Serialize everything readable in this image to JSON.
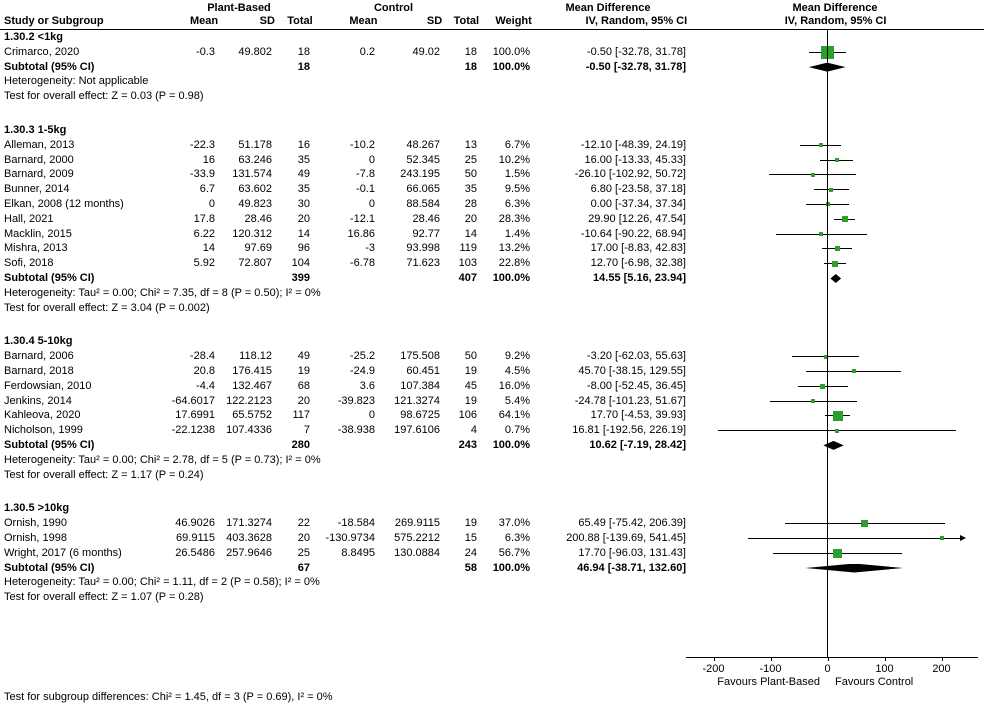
{
  "header": {
    "study_col": "Study or Subgroup",
    "plant_group": "Plant-Based",
    "control_group": "Control",
    "mean": "Mean",
    "sd": "SD",
    "total": "Total",
    "weight": "Weight",
    "md_group": "Mean Difference",
    "ci_method": "IV, Random, 95% CI",
    "plot_md": "Mean Difference",
    "plot_ci_method": "IV, Random, 95% CI"
  },
  "plot": {
    "marker_color": "#2ca02c",
    "axis": {
      "ticks": [
        -200,
        -100,
        0,
        100,
        200
      ],
      "favours_left": "Favours Plant-Based",
      "favours_right": "Favours Control"
    }
  },
  "footer": {
    "subgroup_test": "Test for subgroup differences: Chi² = 1.45, df = 3 (P = 0.69), I² = 0%"
  },
  "chart_data": {
    "type": "forest",
    "effect_measure": "Mean Difference",
    "model": "IV, Random, 95% CI",
    "xlim": [
      -200,
      200
    ],
    "subgroups": [
      {
        "label": "1.30.2 <1kg",
        "studies": [
          {
            "name": "Crimarco, 2020",
            "p_mean": "-0.3",
            "p_sd": "49.802",
            "p_total": "18",
            "c_mean": "0.2",
            "c_sd": "49.02",
            "c_total": "18",
            "weight": "100.0%",
            "ci_text": "-0.50 [-32.78, 31.78]",
            "md": -0.5,
            "lo": -32.78,
            "hi": 31.78,
            "w": 100.0
          }
        ],
        "subtotal": {
          "label": "Subtotal (95% CI)",
          "p_total": "18",
          "c_total": "18",
          "weight": "100.0%",
          "ci_text": "-0.50 [-32.78, 31.78]",
          "md": -0.5,
          "lo": -32.78,
          "hi": 31.78
        },
        "heterogeneity": "Heterogeneity: Not applicable",
        "overall_test": "Test for overall effect: Z = 0.03 (P = 0.98)"
      },
      {
        "label": "1.30.3 1-5kg",
        "studies": [
          {
            "name": "Alleman, 2013",
            "p_mean": "-22.3",
            "p_sd": "51.178",
            "p_total": "16",
            "c_mean": "-10.2",
            "c_sd": "48.267",
            "c_total": "13",
            "weight": "6.7%",
            "ci_text": "-12.10 [-48.39, 24.19]",
            "md": -12.1,
            "lo": -48.39,
            "hi": 24.19,
            "w": 6.7
          },
          {
            "name": "Barnard, 2000",
            "p_mean": "16",
            "p_sd": "63.246",
            "p_total": "35",
            "c_mean": "0",
            "c_sd": "52.345",
            "c_total": "25",
            "weight": "10.2%",
            "ci_text": "16.00 [-13.33, 45.33]",
            "md": 16.0,
            "lo": -13.33,
            "hi": 45.33,
            "w": 10.2
          },
          {
            "name": "Barnard, 2009",
            "p_mean": "-33.9",
            "p_sd": "131.574",
            "p_total": "49",
            "c_mean": "-7.8",
            "c_sd": "243.195",
            "c_total": "50",
            "weight": "1.5%",
            "ci_text": "-26.10 [-102.92, 50.72]",
            "md": -26.1,
            "lo": -102.92,
            "hi": 50.72,
            "w": 1.5
          },
          {
            "name": "Bunner, 2014",
            "p_mean": "6.7",
            "p_sd": "63.602",
            "p_total": "35",
            "c_mean": "-0.1",
            "c_sd": "66.065",
            "c_total": "35",
            "weight": "9.5%",
            "ci_text": "6.80 [-23.58, 37.18]",
            "md": 6.8,
            "lo": -23.58,
            "hi": 37.18,
            "w": 9.5
          },
          {
            "name": "Elkan, 2008 (12 months)",
            "p_mean": "0",
            "p_sd": "49.823",
            "p_total": "30",
            "c_mean": "0",
            "c_sd": "88.584",
            "c_total": "28",
            "weight": "6.3%",
            "ci_text": "0.00 [-37.34, 37.34]",
            "md": 0.0,
            "lo": -37.34,
            "hi": 37.34,
            "w": 6.3
          },
          {
            "name": "Hall, 2021",
            "p_mean": "17.8",
            "p_sd": "28.46",
            "p_total": "20",
            "c_mean": "-12.1",
            "c_sd": "28.46",
            "c_total": "20",
            "weight": "28.3%",
            "ci_text": "29.90 [12.26, 47.54]",
            "md": 29.9,
            "lo": 12.26,
            "hi": 47.54,
            "w": 28.3
          },
          {
            "name": "Macklin, 2015",
            "p_mean": "6.22",
            "p_sd": "120.312",
            "p_total": "14",
            "c_mean": "16.86",
            "c_sd": "92.77",
            "c_total": "14",
            "weight": "1.4%",
            "ci_text": "-10.64 [-90.22, 68.94]",
            "md": -10.64,
            "lo": -90.22,
            "hi": 68.94,
            "w": 1.4
          },
          {
            "name": "Mishra, 2013",
            "p_mean": "14",
            "p_sd": "97.69",
            "p_total": "96",
            "c_mean": "-3",
            "c_sd": "93.998",
            "c_total": "119",
            "weight": "13.2%",
            "ci_text": "17.00 [-8.83, 42.83]",
            "md": 17.0,
            "lo": -8.83,
            "hi": 42.83,
            "w": 13.2
          },
          {
            "name": "Sofi, 2018",
            "p_mean": "5.92",
            "p_sd": "72.807",
            "p_total": "104",
            "c_mean": "-6.78",
            "c_sd": "71.623",
            "c_total": "103",
            "weight": "22.8%",
            "ci_text": "12.70 [-6.98, 32.38]",
            "md": 12.7,
            "lo": -6.98,
            "hi": 32.38,
            "w": 22.8
          }
        ],
        "subtotal": {
          "label": "Subtotal (95% CI)",
          "p_total": "399",
          "c_total": "407",
          "weight": "100.0%",
          "ci_text": "14.55 [5.16, 23.94]",
          "md": 14.55,
          "lo": 5.16,
          "hi": 23.94
        },
        "heterogeneity": "Heterogeneity: Tau² = 0.00; Chi² = 7.35, df = 8 (P = 0.50); I² = 0%",
        "overall_test": "Test for overall effect: Z = 3.04 (P = 0.002)"
      },
      {
        "label": "1.30.4 5-10kg",
        "studies": [
          {
            "name": "Barnard, 2006",
            "p_mean": "-28.4",
            "p_sd": "118.12",
            "p_total": "49",
            "c_mean": "-25.2",
            "c_sd": "175.508",
            "c_total": "50",
            "weight": "9.2%",
            "ci_text": "-3.20 [-62.03, 55.63]",
            "md": -3.2,
            "lo": -62.03,
            "hi": 55.63,
            "w": 9.2
          },
          {
            "name": "Barnard, 2018",
            "p_mean": "20.8",
            "p_sd": "176.415",
            "p_total": "19",
            "c_mean": "-24.9",
            "c_sd": "60.451",
            "c_total": "19",
            "weight": "4.5%",
            "ci_text": "45.70 [-38.15, 129.55]",
            "md": 45.7,
            "lo": -38.15,
            "hi": 129.55,
            "w": 4.5
          },
          {
            "name": "Ferdowsian, 2010",
            "p_mean": "-4.4",
            "p_sd": "132.467",
            "p_total": "68",
            "c_mean": "3.6",
            "c_sd": "107.384",
            "c_total": "45",
            "weight": "16.0%",
            "ci_text": "-8.00 [-52.45, 36.45]",
            "md": -8.0,
            "lo": -52.45,
            "hi": 36.45,
            "w": 16.0
          },
          {
            "name": "Jenkins, 2014",
            "p_mean": "-64.6017",
            "p_sd": "122.2123",
            "p_total": "20",
            "c_mean": "-39.823",
            "c_sd": "121.3274",
            "c_total": "19",
            "weight": "5.4%",
            "ci_text": "-24.78 [-101.23, 51.67]",
            "md": -24.78,
            "lo": -101.23,
            "hi": 51.67,
            "w": 5.4
          },
          {
            "name": "Kahleova, 2020",
            "p_mean": "17.6991",
            "p_sd": "65.5752",
            "p_total": "117",
            "c_mean": "0",
            "c_sd": "98.6725",
            "c_total": "106",
            "weight": "64.1%",
            "ci_text": "17.70 [-4.53, 39.93]",
            "md": 17.7,
            "lo": -4.53,
            "hi": 39.93,
            "w": 64.1
          },
          {
            "name": "Nicholson, 1999",
            "p_mean": "-22.1238",
            "p_sd": "107.4336",
            "p_total": "7",
            "c_mean": "-38.938",
            "c_sd": "197.6106",
            "c_total": "4",
            "weight": "0.7%",
            "ci_text": "16.81 [-192.56, 226.19]",
            "md": 16.81,
            "lo": -192.56,
            "hi": 226.19,
            "w": 0.7
          }
        ],
        "subtotal": {
          "label": "Subtotal (95% CI)",
          "p_total": "280",
          "c_total": "243",
          "weight": "100.0%",
          "ci_text": "10.62 [-7.19, 28.42]",
          "md": 10.62,
          "lo": -7.19,
          "hi": 28.42
        },
        "heterogeneity": "Heterogeneity: Tau² = 0.00; Chi² = 2.78, df = 5 (P = 0.73); I² = 0%",
        "overall_test": "Test for overall effect: Z = 1.17 (P = 0.24)"
      },
      {
        "label": "1.30.5 >10kg",
        "studies": [
          {
            "name": "Ornish, 1990",
            "p_mean": "46.9026",
            "p_sd": "171.3274",
            "p_total": "22",
            "c_mean": "-18.584",
            "c_sd": "269.9115",
            "c_total": "19",
            "weight": "37.0%",
            "ci_text": "65.49 [-75.42, 206.39]",
            "md": 65.49,
            "lo": -75.42,
            "hi": 206.39,
            "w": 37.0
          },
          {
            "name": "Ornish, 1998",
            "p_mean": "69.9115",
            "p_sd": "403.3628",
            "p_total": "20",
            "c_mean": "-130.9734",
            "c_sd": "575.2212",
            "c_total": "15",
            "weight": "6.3%",
            "ci_text": "200.88 [-139.69, 541.45]",
            "md": 200.88,
            "lo": -139.69,
            "hi": 541.45,
            "w": 6.3
          },
          {
            "name": "Wright, 2017 (6 months)",
            "p_mean": "26.5486",
            "p_sd": "257.9646",
            "p_total": "25",
            "c_mean": "8.8495",
            "c_sd": "130.0884",
            "c_total": "24",
            "weight": "56.7%",
            "ci_text": "17.70 [-96.03, 131.43]",
            "md": 17.7,
            "lo": -96.03,
            "hi": 131.43,
            "w": 56.7
          }
        ],
        "subtotal": {
          "label": "Subtotal (95% CI)",
          "p_total": "67",
          "c_total": "58",
          "weight": "100.0%",
          "ci_text": "46.94 [-38.71, 132.60]",
          "md": 46.94,
          "lo": -38.71,
          "hi": 132.6
        },
        "heterogeneity": "Heterogeneity: Tau² = 0.00; Chi² = 1.11, df = 2 (P = 0.58); I² = 0%",
        "overall_test": "Test for overall effect: Z = 1.07 (P = 0.28)"
      }
    ]
  }
}
